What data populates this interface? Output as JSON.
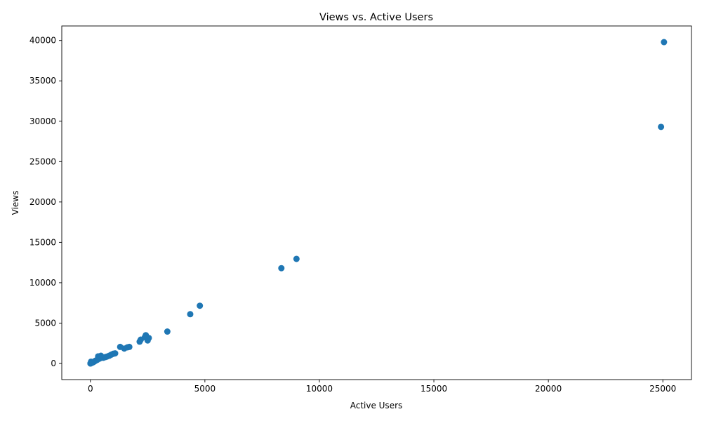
{
  "chart_data": {
    "type": "scatter",
    "title": "Views vs. Active Users",
    "xlabel": "Active Users",
    "ylabel": "Views",
    "xlim": [
      -1250,
      26250
    ],
    "ylim": [
      -2000,
      41800
    ],
    "xticks": [
      0,
      5000,
      10000,
      15000,
      20000,
      25000
    ],
    "xtick_labels": [
      "0",
      "5000",
      "10000",
      "15000",
      "20000",
      "25000"
    ],
    "yticks": [
      0,
      5000,
      10000,
      15000,
      20000,
      25000,
      30000,
      35000,
      40000
    ],
    "ytick_labels": [
      "0",
      "5000",
      "10000",
      "15000",
      "20000",
      "25000",
      "30000",
      "35000",
      "40000"
    ],
    "grid": false,
    "marker_color": "#1f77b4",
    "points": [
      {
        "x": 25050,
        "y": 39800
      },
      {
        "x": 24920,
        "y": 29300
      },
      {
        "x": 9000,
        "y": 12950
      },
      {
        "x": 8340,
        "y": 11800
      },
      {
        "x": 4780,
        "y": 7150
      },
      {
        "x": 4360,
        "y": 6100
      },
      {
        "x": 3360,
        "y": 3950
      },
      {
        "x": 2420,
        "y": 3500
      },
      {
        "x": 2550,
        "y": 3150
      },
      {
        "x": 2500,
        "y": 2850
      },
      {
        "x": 2200,
        "y": 2950
      },
      {
        "x": 2150,
        "y": 2700
      },
      {
        "x": 2380,
        "y": 3250
      },
      {
        "x": 1700,
        "y": 2050
      },
      {
        "x": 1620,
        "y": 2000
      },
      {
        "x": 1480,
        "y": 1850
      },
      {
        "x": 1300,
        "y": 2050
      },
      {
        "x": 1080,
        "y": 1250
      },
      {
        "x": 1000,
        "y": 1200
      },
      {
        "x": 920,
        "y": 1100
      },
      {
        "x": 820,
        "y": 950
      },
      {
        "x": 720,
        "y": 850
      },
      {
        "x": 640,
        "y": 780
      },
      {
        "x": 560,
        "y": 700
      },
      {
        "x": 460,
        "y": 950
      },
      {
        "x": 400,
        "y": 600
      },
      {
        "x": 340,
        "y": 880
      },
      {
        "x": 300,
        "y": 450
      },
      {
        "x": 250,
        "y": 380
      },
      {
        "x": 200,
        "y": 300
      },
      {
        "x": 160,
        "y": 220
      },
      {
        "x": 120,
        "y": 160
      },
      {
        "x": 90,
        "y": 110
      },
      {
        "x": 60,
        "y": 80
      },
      {
        "x": 40,
        "y": 60
      },
      {
        "x": 30,
        "y": 220
      },
      {
        "x": 20,
        "y": 30
      },
      {
        "x": 10,
        "y": 15
      },
      {
        "x": 5,
        "y": 5
      },
      {
        "x": 2,
        "y": 2
      }
    ]
  }
}
